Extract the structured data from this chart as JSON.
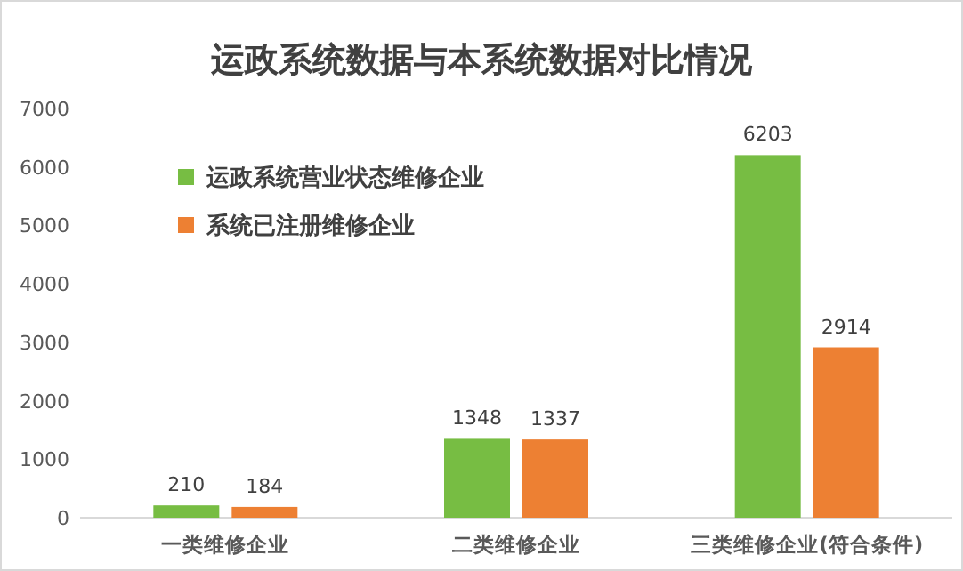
{
  "chart_data": {
    "type": "bar",
    "title": "运政系统数据与本系统数据对比情况",
    "categories": [
      "一类维修企业",
      "二类维修企业",
      "三类维修企业(符合条件)"
    ],
    "series": [
      {
        "name": "运政系统营业状态维修企业",
        "color": "#77bd43",
        "values": [
          210,
          1348,
          6203
        ]
      },
      {
        "name": "系统已注册维修企业",
        "color": "#ed8033",
        "values": [
          184,
          1337,
          2914
        ]
      }
    ],
    "ylim": [
      0,
      7000
    ],
    "yticks": [
      0,
      1000,
      2000,
      3000,
      4000,
      5000,
      6000,
      7000
    ],
    "data_labels": true,
    "legend": "top left"
  }
}
